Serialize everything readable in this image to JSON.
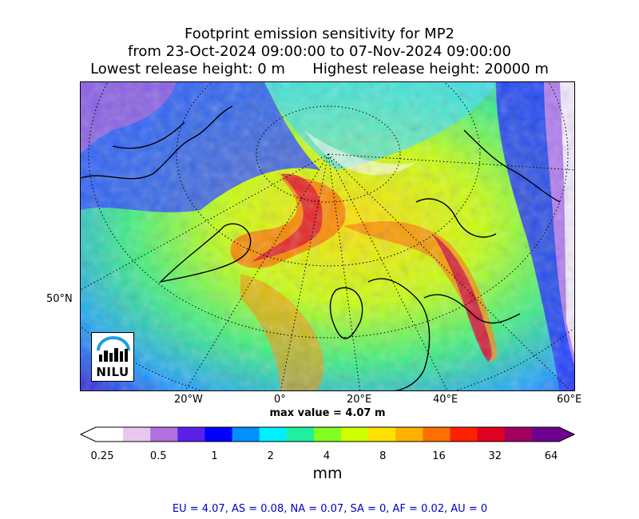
{
  "title": {
    "line1": "Footprint emission sensitivity for MP2",
    "line2": "from 23-Oct-2024 09:00:00 to 07-Nov-2024 09:00:00",
    "line3": "Lowest release height: 0 m      Highest release height: 20000 m"
  },
  "map": {
    "lat_label": "50°N",
    "lon_labels": [
      "20°W",
      "0°",
      "20°E",
      "40°E",
      "60°E"
    ],
    "max_value_text": "max value = 4.07 m",
    "logo_text": "NILU"
  },
  "colorbar": {
    "tick_labels": [
      "0.25",
      "0.5",
      "1",
      "2",
      "4",
      "8",
      "16",
      "32",
      "64"
    ],
    "units": "mm",
    "colors": [
      "#ffffff",
      "#e8c8f0",
      "#b070e0",
      "#5a20e8",
      "#0000ff",
      "#0090ff",
      "#00f0ff",
      "#20f0a0",
      "#80ff20",
      "#d0ff00",
      "#ffe000",
      "#ffb000",
      "#ff7000",
      "#ff2000",
      "#e00020",
      "#a00060",
      "#700090"
    ]
  },
  "regions": {
    "text": "EU = 4.07,  AS = 0.08,  NA = 0.07,  SA = 0,  AF = 0.02,  AU = 0"
  }
}
